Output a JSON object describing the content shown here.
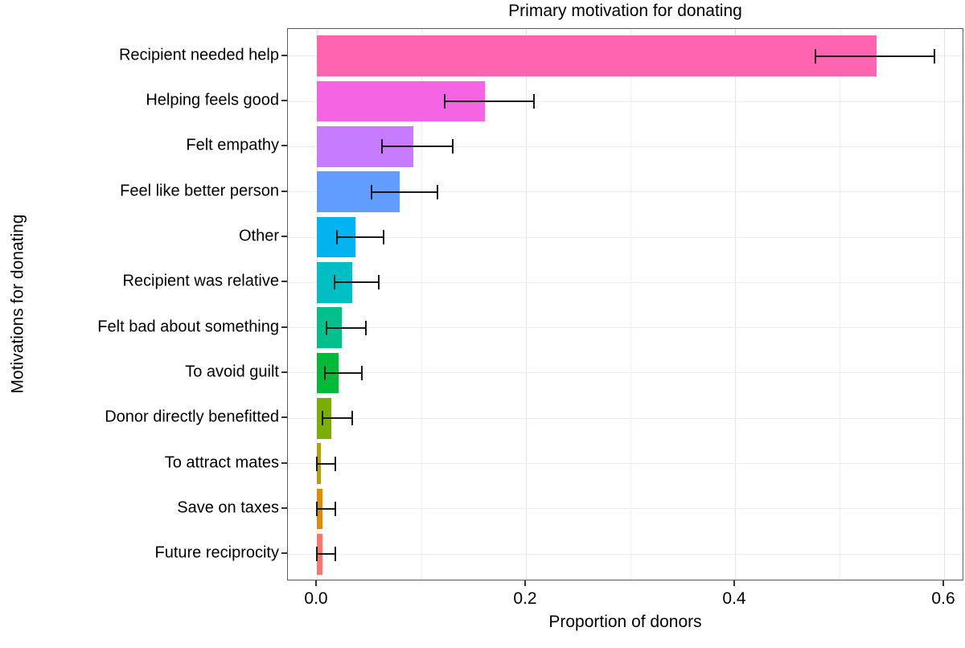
{
  "chart_data": {
    "type": "bar",
    "orientation": "horizontal",
    "title": "Primary motivation for donating",
    "xlabel": "Proportion of donors",
    "ylabel": "Motivations for donating",
    "legend": "none",
    "grid": true,
    "categories": [
      "Recipient needed help",
      "Helping feels good",
      "Felt empathy",
      "Feel like better person",
      "Other",
      "Recipient was relative",
      "Felt bad about something",
      "To avoid guilt",
      "Donor directly benefitted",
      "To attract mates",
      "Save on taxes",
      "Future reciprocity"
    ],
    "values": [
      0.535,
      0.161,
      0.092,
      0.079,
      0.037,
      0.034,
      0.024,
      0.021,
      0.014,
      0.004,
      0.005,
      0.005
    ],
    "error_low": [
      0.477,
      0.122,
      0.062,
      0.052,
      0.019,
      0.017,
      0.009,
      0.008,
      0.005,
      0.0,
      0.0,
      0.0
    ],
    "error_high": [
      0.591,
      0.208,
      0.13,
      0.115,
      0.064,
      0.059,
      0.047,
      0.043,
      0.034,
      0.018,
      0.018,
      0.018
    ],
    "bar_colors": [
      "#FF64B0",
      "#F564E3",
      "#C77CFF",
      "#619CFF",
      "#00B4F0",
      "#00BFC4",
      "#00C08B",
      "#00BA38",
      "#7CAE00",
      "#B79F00",
      "#DE8C00",
      "#F8766D"
    ],
    "xlim": [
      -0.0277,
      0.6192
    ],
    "x_ticks": [
      0.0,
      0.2,
      0.4,
      0.6
    ],
    "x_tick_labels": [
      "0.0",
      "0.2",
      "0.4",
      "0.6"
    ],
    "x_minor_ticks": [
      0.1,
      0.3,
      0.5
    ]
  },
  "style": {
    "background": "#ffffff",
    "panel_border_color": "#595959",
    "major_grid_color": "#e4e4e4",
    "minor_grid_color": "#f0f0f0",
    "errorbar_color": "#1a1a1a",
    "text_color": "#000000"
  }
}
